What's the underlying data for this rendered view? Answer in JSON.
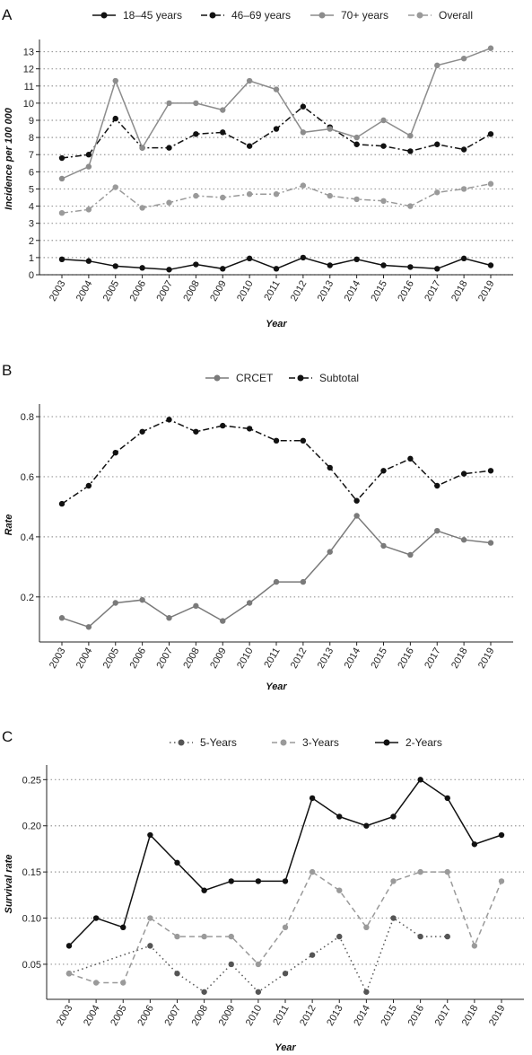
{
  "chart_data": [
    {
      "panel": "A",
      "type": "line",
      "ylabel": "Incidence per 100 000",
      "xlabel": "Year",
      "legend_position": "top",
      "grid": "horizontal dotted",
      "ylim": [
        0,
        13.5
      ],
      "yticks": [
        0,
        1,
        2,
        3,
        4,
        5,
        6,
        7,
        8,
        9,
        10,
        11,
        12,
        13
      ],
      "categories": [
        "2003",
        "2004",
        "2005",
        "2006",
        "2007",
        "2008",
        "2009",
        "2010",
        "2011",
        "2012",
        "2013",
        "2014",
        "2015",
        "2016",
        "2017",
        "2018",
        "2019"
      ],
      "series": [
        {
          "name": "18–45 years",
          "color": "#111111",
          "dash": "solid",
          "values": [
            0.9,
            0.8,
            0.5,
            0.4,
            0.3,
            0.6,
            0.35,
            0.95,
            0.35,
            1.0,
            0.55,
            0.9,
            0.55,
            0.45,
            0.35,
            0.95,
            0.55
          ]
        },
        {
          "name": "46–69 years",
          "color": "#111111",
          "dash": "dashdot",
          "values": [
            6.8,
            7.0,
            9.1,
            7.4,
            7.4,
            8.2,
            8.3,
            7.5,
            8.5,
            9.8,
            8.6,
            7.6,
            7.5,
            7.2,
            7.6,
            7.3,
            8.2
          ]
        },
        {
          "name": "70+ years",
          "color": "#8c8c8c",
          "dash": "solid",
          "values": [
            5.6,
            6.3,
            11.3,
            7.4,
            10.0,
            10.0,
            9.6,
            11.3,
            10.8,
            8.3,
            8.5,
            8.0,
            9.0,
            8.1,
            12.2,
            12.6,
            13.2
          ]
        },
        {
          "name": "Overall",
          "color": "#9a9a9a",
          "dash": "dashdot",
          "values": [
            3.6,
            3.8,
            5.1,
            3.9,
            4.2,
            4.6,
            4.5,
            4.7,
            4.7,
            5.2,
            4.6,
            4.4,
            4.3,
            4.0,
            4.8,
            5.0,
            5.3
          ]
        }
      ]
    },
    {
      "panel": "B",
      "type": "line",
      "ylabel": "Rate",
      "xlabel": "Year",
      "legend_position": "top",
      "grid": "horizontal dotted",
      "ylim": [
        0.05,
        0.83
      ],
      "yticks": [
        0.2,
        0.4,
        0.6,
        0.8
      ],
      "ytick_labels": [
        "0.2",
        "0.4",
        "0.6",
        "0.8"
      ],
      "categories": [
        "2003",
        "2004",
        "2005",
        "2006",
        "2007",
        "2008",
        "2009",
        "2010",
        "2011",
        "2012",
        "2013",
        "2014",
        "2015",
        "2016",
        "2017",
        "2018",
        "2019"
      ],
      "series": [
        {
          "name": "CRCET",
          "color": "#7a7a7a",
          "dash": "solid",
          "values": [
            0.13,
            0.1,
            0.18,
            0.19,
            0.13,
            0.17,
            0.12,
            0.18,
            0.25,
            0.25,
            0.35,
            0.47,
            0.37,
            0.34,
            0.42,
            0.39,
            0.38
          ]
        },
        {
          "name": "Subtotal",
          "color": "#111111",
          "dash": "dashdot",
          "values": [
            0.51,
            0.57,
            0.68,
            0.75,
            0.79,
            0.75,
            0.77,
            0.76,
            0.72,
            0.72,
            0.63,
            0.52,
            0.62,
            0.66,
            0.57,
            0.61,
            0.62
          ]
        }
      ]
    },
    {
      "panel": "C",
      "type": "line",
      "ylabel": "Survival rate",
      "xlabel": "Year",
      "legend_position": "top",
      "grid": "horizontal dotted",
      "ylim": [
        0.012,
        0.262
      ],
      "yticks": [
        0.05,
        0.1,
        0.15,
        0.2,
        0.25
      ],
      "ytick_labels": [
        "0.05",
        "0.10",
        "0.15",
        "0.20",
        "0.25"
      ],
      "categories": [
        "2003",
        "2004",
        "2005",
        "2006",
        "2007",
        "2008",
        "2009",
        "2010",
        "2011",
        "2012",
        "2013",
        "2014",
        "2015",
        "2016",
        "2017",
        "2018",
        "2019"
      ],
      "series": [
        {
          "name": "5-Years",
          "color": "#555555",
          "dash": "dotted",
          "values": [
            0.04,
            null,
            null,
            0.07,
            0.04,
            0.02,
            0.05,
            0.02,
            0.04,
            0.06,
            0.08,
            0.02,
            0.1,
            0.08,
            0.08,
            null,
            null
          ]
        },
        {
          "name": "3-Years",
          "color": "#9a9a9a",
          "dash": "dashed",
          "values": [
            0.04,
            0.03,
            0.03,
            0.1,
            0.08,
            0.08,
            0.08,
            0.05,
            0.09,
            0.15,
            0.13,
            0.09,
            0.14,
            0.15,
            0.15,
            0.07,
            0.14
          ]
        },
        {
          "name": "2-Years",
          "color": "#111111",
          "dash": "solid",
          "values": [
            0.07,
            0.1,
            0.09,
            0.19,
            0.16,
            0.13,
            0.14,
            0.14,
            0.14,
            0.23,
            0.21,
            0.2,
            0.21,
            0.25,
            0.23,
            0.18,
            0.19
          ]
        }
      ]
    }
  ]
}
